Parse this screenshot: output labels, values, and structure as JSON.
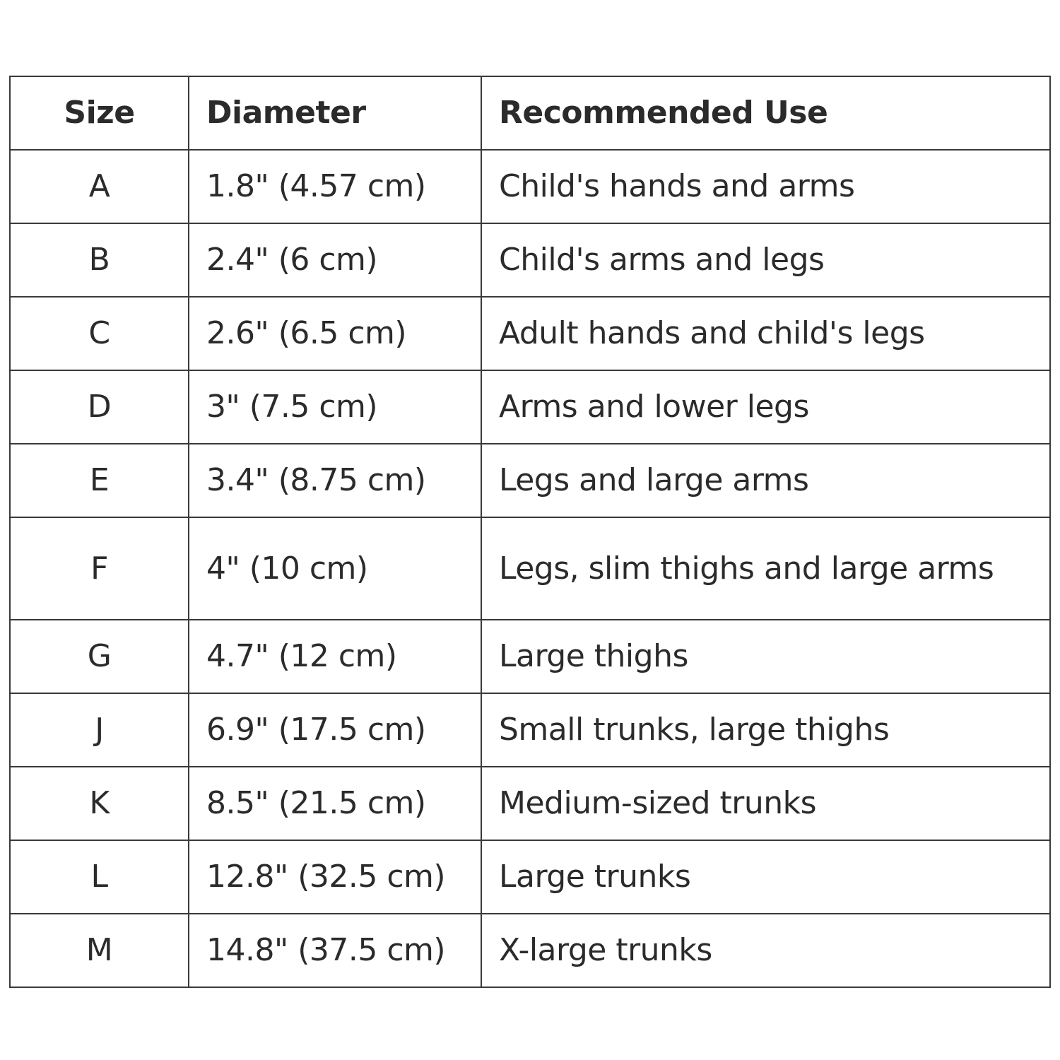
{
  "table": {
    "headers": [
      "Size",
      "Diameter",
      "Recommended Use"
    ],
    "rows": [
      [
        "A",
        "1.8\" (4.57 cm)",
        "Child's hands and arms"
      ],
      [
        "B",
        "2.4\" (6 cm)",
        "Child's arms and legs"
      ],
      [
        "C",
        "2.6\" (6.5 cm)",
        "Adult hands and child's legs"
      ],
      [
        "D",
        "3\" (7.5 cm)",
        "Arms and lower legs"
      ],
      [
        "E",
        "3.4\" (8.75 cm)",
        "Legs and large arms"
      ],
      [
        "F",
        "4\" (10 cm)",
        "Legs, slim thighs and large arms"
      ],
      [
        "G",
        "4.7\" (12 cm)",
        "Large thighs"
      ],
      [
        "J",
        "6.9\" (17.5 cm)",
        "Small trunks, large thighs"
      ],
      [
        "K",
        "8.5\" (21.5 cm)",
        "Medium-sized trunks"
      ],
      [
        "L",
        "12.8\" (32.5 cm)",
        "Large trunks"
      ],
      [
        "M",
        "14.8\" (37.5 cm)",
        "X-large trunks"
      ]
    ]
  }
}
